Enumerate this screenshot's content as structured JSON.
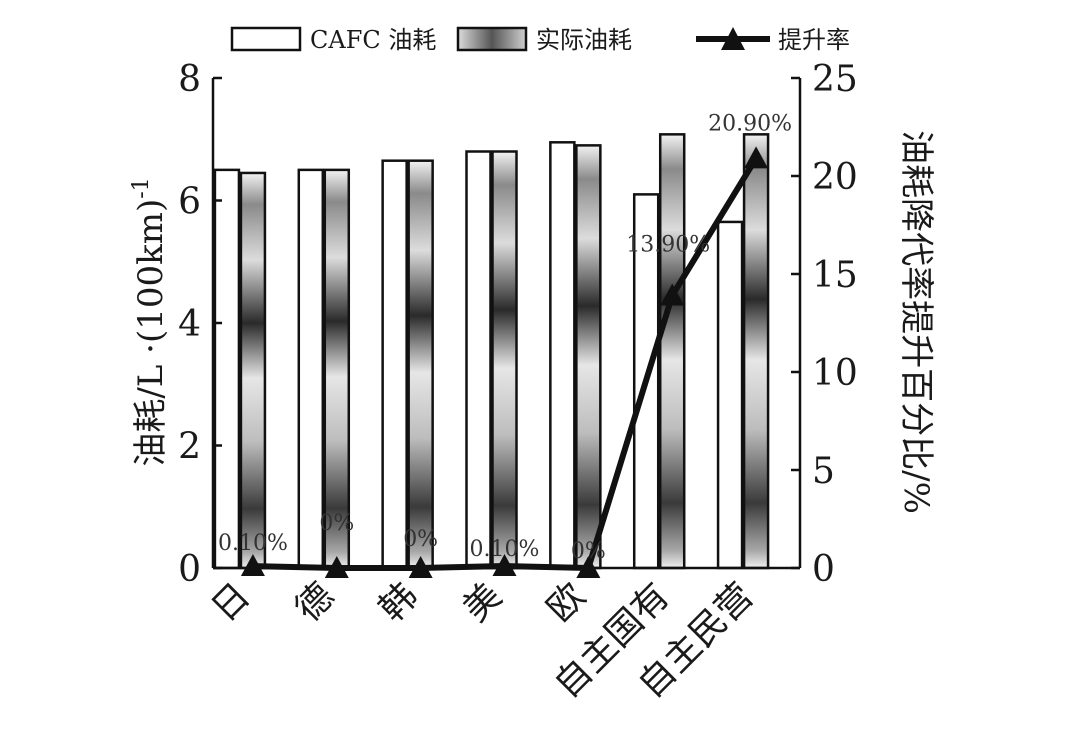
{
  "chart_data": {
    "type": "bar",
    "categories": [
      "日",
      "德",
      "韩",
      "美",
      "欧",
      "自主国有",
      "自主民营"
    ],
    "series": [
      {
        "name": "CAFC 油耗",
        "kind": "bar",
        "axis": "left",
        "color": "#ffffff",
        "values": [
          6.5,
          6.5,
          6.65,
          6.8,
          6.95,
          6.1,
          5.65
        ]
      },
      {
        "name": "实际油耗",
        "kind": "bar",
        "axis": "left",
        "color": "#555555",
        "values": [
          6.45,
          6.5,
          6.65,
          6.8,
          6.9,
          7.08,
          7.08
        ]
      },
      {
        "name": "提升率",
        "kind": "line",
        "axis": "right",
        "color": "#111111",
        "values": [
          0.1,
          0,
          0,
          0.1,
          0,
          13.9,
          20.9
        ]
      }
    ],
    "data_labels": [
      "0.10%",
      "0%",
      "0%",
      "0.10%",
      "0%",
      "13.90%",
      "20.90%"
    ],
    "y_left": {
      "label": "油耗/L ·(100km)",
      "label_superscript": "-1",
      "range": [
        0,
        8
      ],
      "ticks": [
        "0",
        "2",
        "4",
        "6",
        "8"
      ]
    },
    "y_right": {
      "label": "油耗降代率提升百分比/%",
      "range": [
        0,
        25
      ],
      "ticks": [
        "0",
        "5",
        "10",
        "15",
        "20",
        "25"
      ]
    },
    "legend": {
      "placement": "top"
    },
    "grid": false
  }
}
